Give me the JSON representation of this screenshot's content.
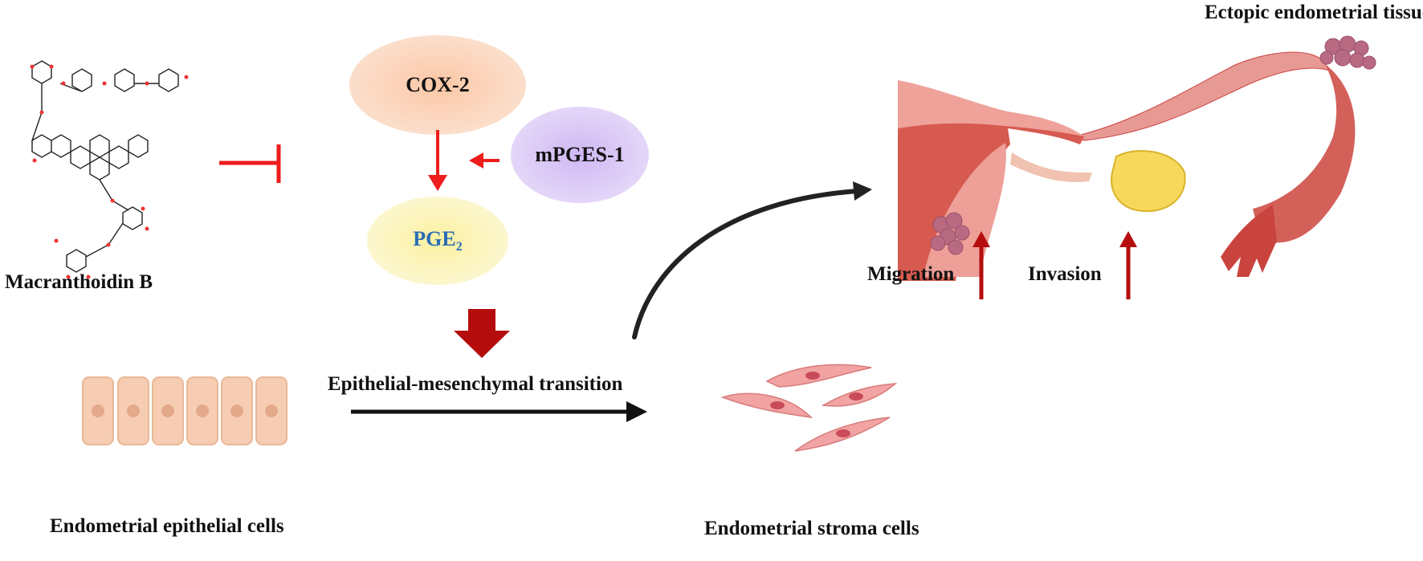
{
  "compound": {
    "name": "Macranthoidin B"
  },
  "pathway": {
    "cox2": "COX-2",
    "mpges1": "mPGES-1",
    "pge2_base": "PGE",
    "pge2_sub": "2",
    "emt": "Epithelial-mesenchymal transition"
  },
  "cells": {
    "epithelial": "Endometrial epithelial cells",
    "stroma": "Endometrial stroma cells"
  },
  "uterus": {
    "ectopic": "Ectopic endometrial tissue",
    "migration": "Migration",
    "invasion": "Invasion"
  },
  "colors": {
    "inhibit_red": "#ee1c1c",
    "dark_red": "#b50d0d",
    "pge2_blue": "#2a6db5",
    "cox2_fill": "#fbd0b4",
    "mpges1_fill": "#d9c6f5",
    "pge2_fill": "#fbf3b0"
  }
}
